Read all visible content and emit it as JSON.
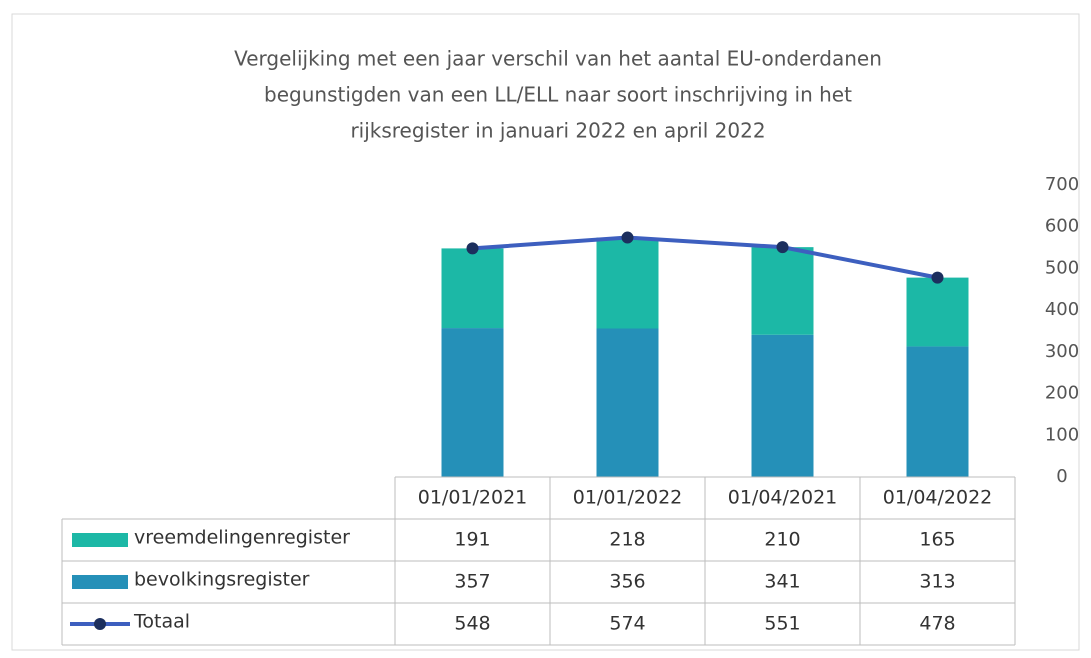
{
  "chart_data": {
    "type": "bar",
    "stacked": true,
    "title": [
      "Vergelijking met een  jaar verschil van het aantal EU-onderdanen",
      "begunstigden  van een LL/ELL  naar soort inschrijving in het",
      "rijksregister in januari 2022 en april 2022"
    ],
    "categories": [
      "01/01/2021",
      "01/01/2022",
      "01/04/2021",
      "01/04/2022"
    ],
    "series": [
      {
        "name": "vreemdelingenregister",
        "type": "bar",
        "color": "#1cb8a6",
        "values": [
          191,
          218,
          210,
          165
        ]
      },
      {
        "name": "bevolkingsregister",
        "type": "bar",
        "color": "#2590b8",
        "values": [
          357,
          356,
          341,
          313
        ]
      },
      {
        "name": "Totaal",
        "type": "line",
        "color": "#3d5fbf",
        "marker_color": "#1c2f5e",
        "values": [
          548,
          574,
          551,
          478
        ]
      }
    ],
    "ylim": [
      0,
      700
    ],
    "yticks": [
      0,
      100,
      200,
      300,
      400,
      500,
      600,
      700
    ],
    "y_axis_side": "right",
    "grid": false,
    "data_table": true
  }
}
